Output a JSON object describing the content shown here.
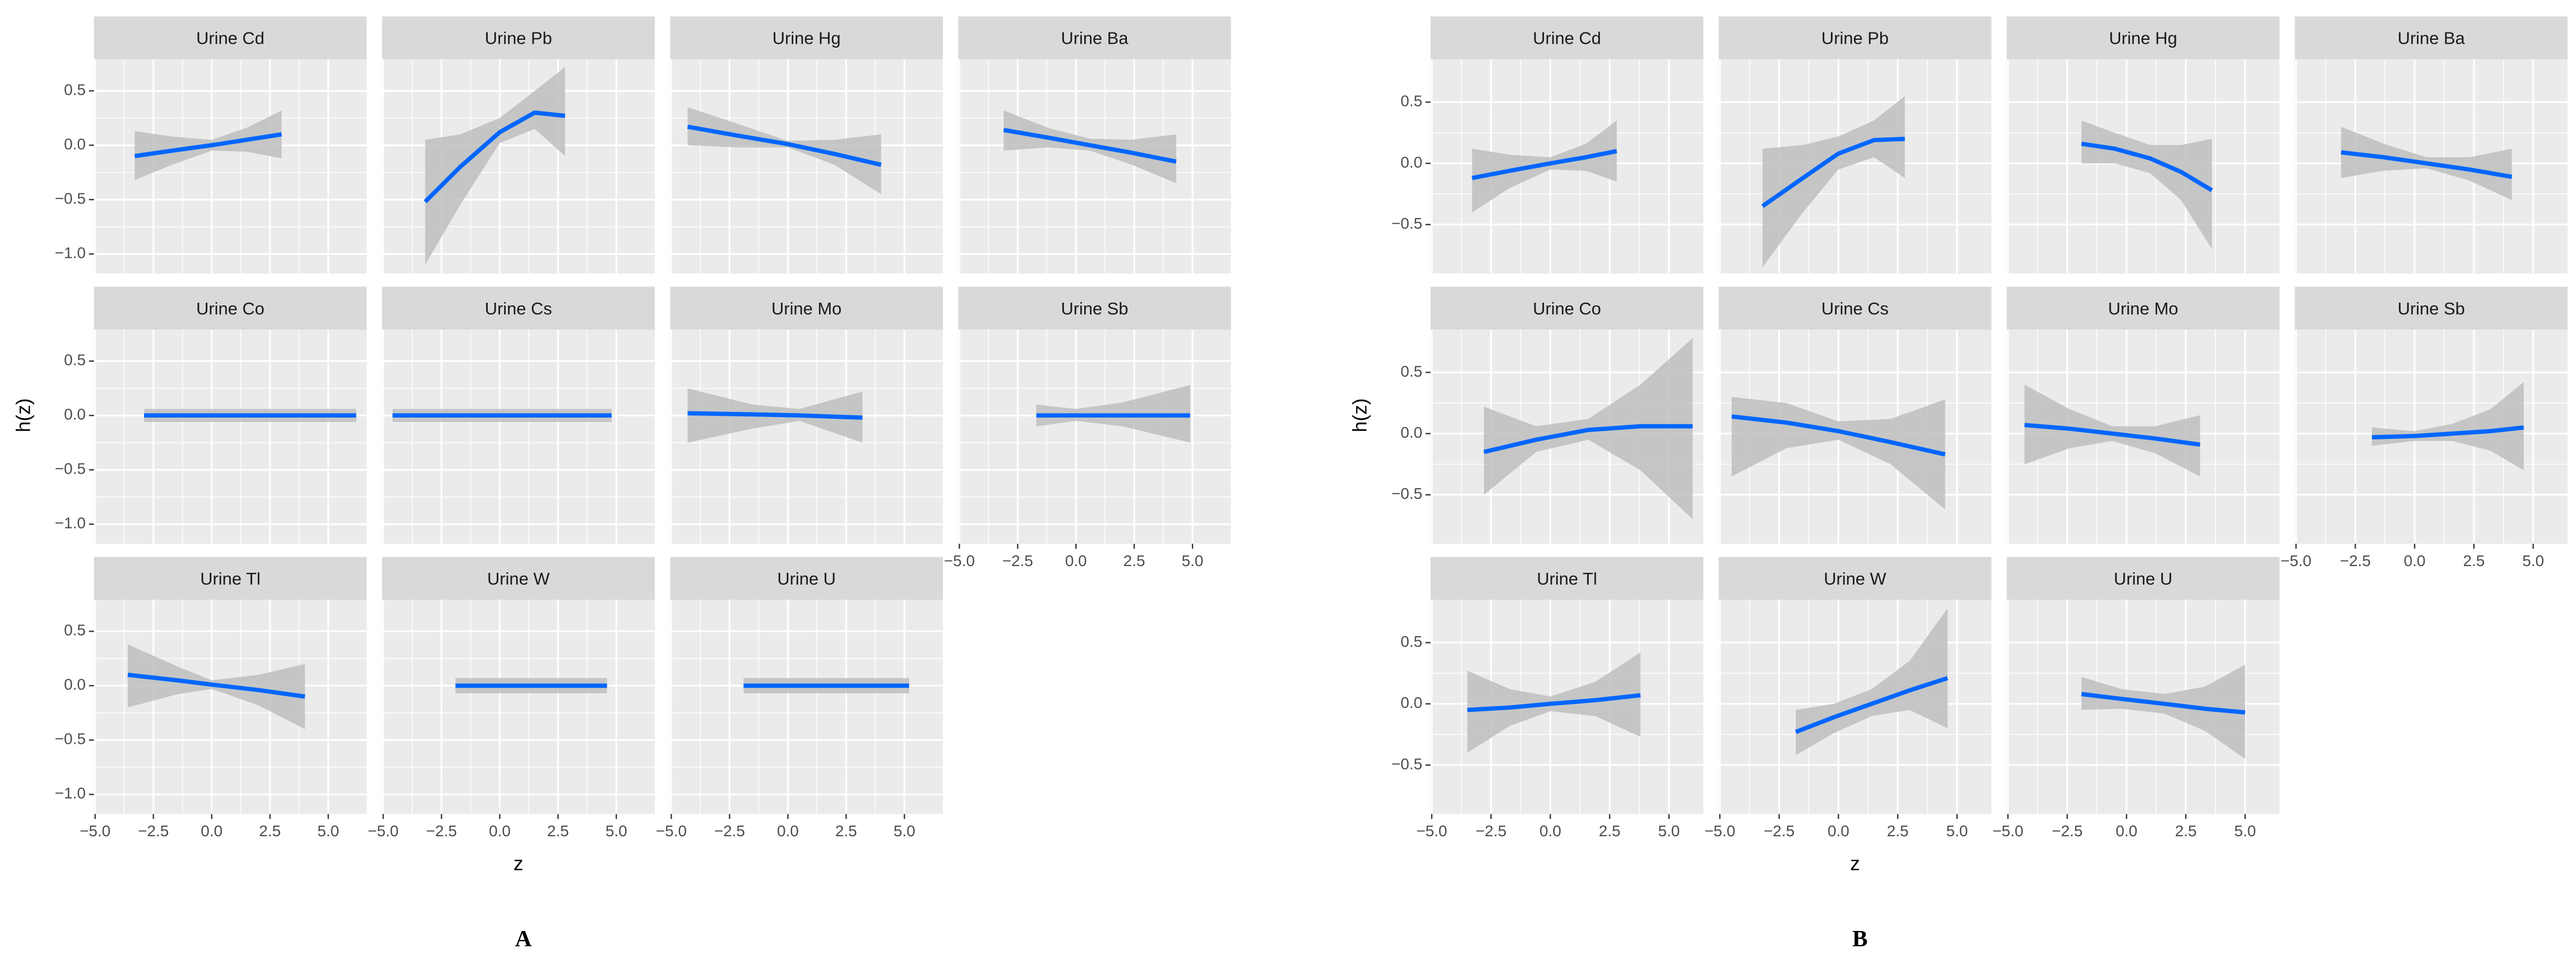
{
  "chart_data": [
    {
      "type": "line",
      "label": "A",
      "xlabel": "z",
      "ylabel": "h(z)",
      "xlim": [
        -5.05,
        6.65
      ],
      "xticks": [
        {
          "value": -5,
          "label": "−5.0"
        },
        {
          "value": -2.5,
          "label": "−2.5"
        },
        {
          "value": 0,
          "label": "0.0"
        },
        2.5,
        {
          "value": 5,
          "label": "5.0"
        }
      ],
      "ylim": [
        -1.18,
        0.79
      ],
      "yticks": [
        0.5,
        {
          "value": 0,
          "label": "0.0"
        },
        {
          "value": -0.5,
          "label": "−0.5"
        },
        {
          "value": -1,
          "label": "−1.0"
        }
      ],
      "grid": true,
      "line_color": "#0066FF",
      "band_color": "#BEBEBE",
      "facets": [
        {
          "title": "Urine Cd",
          "x": [
            -3.3,
            -1.7,
            0,
            1.5,
            3
          ],
          "y": [
            -0.1,
            -0.05,
            0,
            0.05,
            0.1
          ],
          "lower": [
            -0.32,
            -0.18,
            -0.05,
            -0.06,
            -0.12
          ],
          "upper": [
            0.13,
            0.08,
            0.05,
            0.16,
            0.32
          ]
        },
        {
          "title": "Urine Pb",
          "x": [
            -3.2,
            -1.7,
            0,
            1.5,
            2.8
          ],
          "y": [
            -0.52,
            -0.2,
            0.12,
            0.3,
            0.27
          ],
          "lower": [
            -1.1,
            -0.55,
            0.02,
            0.15,
            -0.1
          ],
          "upper": [
            0.05,
            0.1,
            0.25,
            0.5,
            0.72
          ]
        },
        {
          "title": "Urine Hg",
          "x": [
            -4.3,
            -2.2,
            0,
            2,
            4
          ],
          "y": [
            0.17,
            0.09,
            0.01,
            -0.08,
            -0.18
          ],
          "lower": [
            0,
            -0.02,
            -0.02,
            -0.18,
            -0.45
          ],
          "upper": [
            0.35,
            0.2,
            0.04,
            0.05,
            0.1
          ]
        },
        {
          "title": "Urine Ba",
          "x": [
            -3.1,
            -1.2,
            0.6,
            2.4,
            4.3
          ],
          "y": [
            0.14,
            0.07,
            0,
            -0.07,
            -0.15
          ],
          "lower": [
            -0.05,
            -0.02,
            -0.05,
            -0.18,
            -0.35
          ],
          "upper": [
            0.32,
            0.16,
            0.06,
            0.05,
            0.1
          ]
        },
        {
          "title": "Urine Co",
          "x": [
            -2.9,
            0,
            3,
            6.2
          ],
          "y": [
            0,
            0,
            0,
            0
          ],
          "lower": [
            -0.06,
            -0.06,
            -0.06,
            -0.06
          ],
          "upper": [
            0.06,
            0.06,
            0.06,
            0.06
          ]
        },
        {
          "title": "Urine Cs",
          "x": [
            -4.6,
            0,
            4.8
          ],
          "y": [
            0,
            0,
            0
          ],
          "lower": [
            -0.06,
            -0.06,
            -0.06
          ],
          "upper": [
            0.06,
            0.06,
            0.06
          ]
        },
        {
          "title": "Urine Mo",
          "x": [
            -4.3,
            -1.5,
            0.5,
            3.2
          ],
          "y": [
            0.02,
            0.01,
            0,
            -0.02
          ],
          "lower": [
            -0.25,
            -0.12,
            -0.05,
            -0.25
          ],
          "upper": [
            0.25,
            0.1,
            0.06,
            0.22
          ]
        },
        {
          "title": "Urine Sb",
          "x": [
            -1.7,
            0,
            2,
            4.9
          ],
          "y": [
            0,
            0,
            0,
            0
          ],
          "lower": [
            -0.1,
            -0.05,
            -0.1,
            -0.25
          ],
          "upper": [
            0.1,
            0.06,
            0.12,
            0.28
          ]
        },
        {
          "title": "Urine Tl",
          "x": [
            -3.6,
            -1.5,
            0,
            2,
            4
          ],
          "y": [
            0.1,
            0.05,
            0.01,
            -0.04,
            -0.1
          ],
          "lower": [
            -0.2,
            -0.08,
            -0.03,
            -0.18,
            -0.4
          ],
          "upper": [
            0.38,
            0.18,
            0.05,
            0.1,
            0.2
          ]
        },
        {
          "title": "Urine W",
          "x": [
            -1.9,
            1.5,
            4.6
          ],
          "y": [
            0,
            0,
            0
          ],
          "lower": [
            -0.07,
            -0.07,
            -0.07
          ],
          "upper": [
            0.07,
            0.07,
            0.07
          ]
        },
        {
          "title": "Urine U",
          "x": [
            -1.9,
            1.5,
            5.2
          ],
          "y": [
            0,
            0,
            0
          ],
          "lower": [
            -0.07,
            -0.07,
            -0.07
          ],
          "upper": [
            0.07,
            0.07,
            0.07
          ]
        }
      ]
    },
    {
      "type": "line",
      "label": "B",
      "xlabel": "z",
      "ylabel": "h(z)",
      "xlim": [
        -5.05,
        6.45
      ],
      "xticks": [
        {
          "value": -5,
          "label": "−5.0"
        },
        {
          "value": -2.5,
          "label": "−2.5"
        },
        {
          "value": 0,
          "label": "0.0"
        },
        2.5,
        {
          "value": 5,
          "label": "5.0"
        }
      ],
      "ylim": [
        -0.9,
        0.85
      ],
      "yticks": [
        0.5,
        {
          "value": 0,
          "label": "0.0"
        },
        {
          "value": -0.5,
          "label": "−0.5"
        }
      ],
      "grid": true,
      "line_color": "#0066FF",
      "band_color": "#BEBEBE",
      "facets": [
        {
          "title": "Urine Cd",
          "x": [
            -3.3,
            -1.7,
            0,
            1.5,
            2.8
          ],
          "y": [
            -0.12,
            -0.06,
            0,
            0.05,
            0.1
          ],
          "lower": [
            -0.4,
            -0.2,
            -0.05,
            -0.06,
            -0.15
          ],
          "upper": [
            0.12,
            0.07,
            0.05,
            0.16,
            0.35
          ]
        },
        {
          "title": "Urine Pb",
          "x": [
            -3.2,
            -1.5,
            0,
            1.5,
            2.8
          ],
          "y": [
            -0.35,
            -0.12,
            0.08,
            0.19,
            0.2
          ],
          "lower": [
            -0.85,
            -0.4,
            -0.05,
            0.05,
            -0.12
          ],
          "upper": [
            0.12,
            0.15,
            0.22,
            0.35,
            0.55
          ]
        },
        {
          "title": "Urine Hg",
          "x": [
            -1.9,
            -0.5,
            1,
            2.3,
            3.6
          ],
          "y": [
            0.16,
            0.12,
            0.04,
            -0.07,
            -0.22
          ],
          "lower": [
            0,
            0,
            -0.08,
            -0.3,
            -0.7
          ],
          "upper": [
            0.35,
            0.25,
            0.15,
            0.15,
            0.2
          ]
        },
        {
          "title": "Urine Ba",
          "x": [
            -3.1,
            -1.3,
            0.5,
            2.3,
            4.1
          ],
          "y": [
            0.09,
            0.05,
            0,
            -0.05,
            -0.11
          ],
          "lower": [
            -0.12,
            -0.06,
            -0.04,
            -0.14,
            -0.3
          ],
          "upper": [
            0.3,
            0.16,
            0.05,
            0.05,
            0.12
          ]
        },
        {
          "title": "Urine Co",
          "x": [
            -2.8,
            -0.6,
            1.6,
            3.8,
            6
          ],
          "y": [
            -0.15,
            -0.05,
            0.03,
            0.06,
            0.06
          ],
          "lower": [
            -0.5,
            -0.15,
            -0.05,
            -0.3,
            -0.7
          ],
          "upper": [
            0.22,
            0.06,
            0.12,
            0.4,
            0.78
          ]
        },
        {
          "title": "Urine Cs",
          "x": [
            -4.5,
            -2.2,
            0,
            2.2,
            4.5
          ],
          "y": [
            0.14,
            0.09,
            0.02,
            -0.07,
            -0.17
          ],
          "lower": [
            -0.35,
            -0.12,
            -0.05,
            -0.25,
            -0.62
          ],
          "upper": [
            0.3,
            0.25,
            0.1,
            0.12,
            0.28
          ]
        },
        {
          "title": "Urine Mo",
          "x": [
            -4.3,
            -2.4,
            -0.6,
            1.2,
            3.1
          ],
          "y": [
            0.07,
            0.04,
            0,
            -0.04,
            -0.09
          ],
          "lower": [
            -0.25,
            -0.12,
            -0.06,
            -0.16,
            -0.35
          ],
          "upper": [
            0.4,
            0.2,
            0.06,
            0.06,
            0.15
          ]
        },
        {
          "title": "Urine Sb",
          "x": [
            -1.8,
            0,
            1.6,
            3.2,
            4.6
          ],
          "y": [
            -0.03,
            -0.02,
            0,
            0.02,
            0.05
          ],
          "lower": [
            -0.1,
            -0.06,
            -0.06,
            -0.14,
            -0.3
          ],
          "upper": [
            0.05,
            0.02,
            0.08,
            0.2,
            0.42
          ]
        },
        {
          "title": "Urine Tl",
          "x": [
            -3.5,
            -1.7,
            0,
            1.9,
            3.8
          ],
          "y": [
            -0.05,
            -0.03,
            0,
            0.03,
            0.07
          ],
          "lower": [
            -0.4,
            -0.18,
            -0.06,
            -0.1,
            -0.27
          ],
          "upper": [
            0.27,
            0.12,
            0.06,
            0.18,
            0.42
          ]
        },
        {
          "title": "Urine W",
          "x": [
            -1.8,
            -0.2,
            1.4,
            3,
            4.6
          ],
          "y": [
            -0.23,
            -0.11,
            0,
            0.11,
            0.21
          ],
          "lower": [
            -0.42,
            -0.24,
            -0.1,
            -0.05,
            -0.2
          ],
          "upper": [
            -0.05,
            0,
            0.12,
            0.35,
            0.78
          ]
        },
        {
          "title": "Urine U",
          "x": [
            -1.9,
            -0.2,
            1.6,
            3.3,
            5
          ],
          "y": [
            0.08,
            0.04,
            0,
            -0.04,
            -0.07
          ],
          "lower": [
            -0.05,
            -0.04,
            -0.08,
            -0.22,
            -0.45
          ],
          "upper": [
            0.22,
            0.12,
            0.08,
            0.14,
            0.32
          ]
        }
      ]
    }
  ]
}
